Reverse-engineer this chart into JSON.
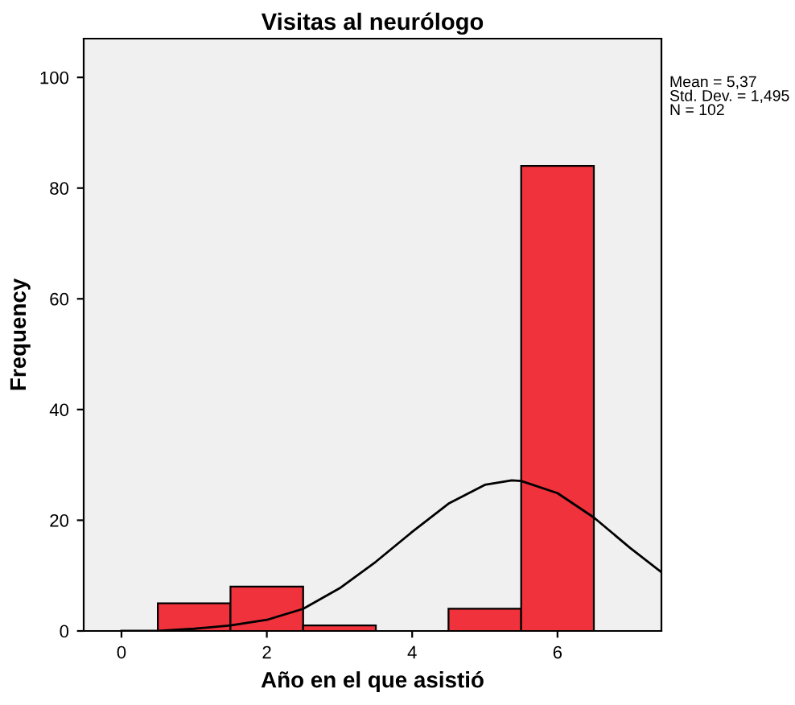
{
  "chart_data": {
    "type": "histogram",
    "title": "Visitas al neurólogo",
    "xlabel": "Año en el que asistió",
    "ylabel": "Frequency",
    "bins": [
      0.5,
      1.5,
      2.5,
      3.5,
      4.5,
      5.5,
      6.5
    ],
    "values": [
      5,
      8,
      1,
      0,
      4,
      84
    ],
    "color": "#f0323c",
    "series": [
      {
        "type": "line",
        "color": "#000000",
        "x": [
          0,
          0.5,
          1,
          1.5,
          2,
          2.5,
          3,
          3.5,
          4,
          4.5,
          5,
          5.37,
          5.5,
          6,
          6.5,
          7,
          7.43
        ],
        "values": [
          0,
          0,
          0.4,
          1,
          2,
          4,
          7.7,
          12.5,
          17.9,
          23.0,
          26.4,
          27.2,
          27.1,
          24.9,
          20.5,
          15.0,
          10.6
        ]
      }
    ],
    "xlim": [
      -0.52,
      7.43
    ],
    "ylim": [
      0,
      107
    ],
    "xticks": [
      0,
      2,
      4,
      6
    ],
    "yticks": [
      0,
      20,
      40,
      60,
      80,
      100
    ],
    "annotations": [
      "Mean = 5,37\nStd. Dev. = 1,495\nN = 102"
    ]
  }
}
